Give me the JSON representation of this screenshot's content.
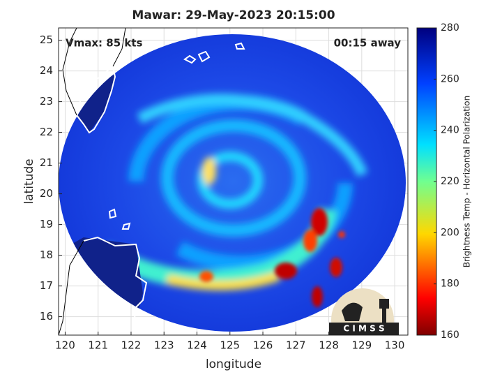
{
  "map": {
    "title": "Mawar: 29-May-2023 20:15:00",
    "annotation_left": "Vmax: 85 kts",
    "annotation_right": "00:15 away",
    "xlabel": "longitude",
    "ylabel": "latitude",
    "xlim": [
      119.8,
      130.4
    ],
    "ylim": [
      15.4,
      25.4
    ],
    "xticks": [
      120,
      121,
      122,
      123,
      124,
      125,
      126,
      127,
      128,
      129,
      130
    ],
    "yticks": [
      16,
      17,
      18,
      19,
      20,
      21,
      22,
      23,
      24,
      25
    ],
    "grid": true,
    "colorbar": {
      "label": "Brightness Temp - Horizontal Polarization",
      "lim": [
        160,
        280
      ],
      "ticks": [
        160,
        180,
        200,
        220,
        240,
        260,
        280
      ]
    },
    "logo": "C I M S S"
  }
}
